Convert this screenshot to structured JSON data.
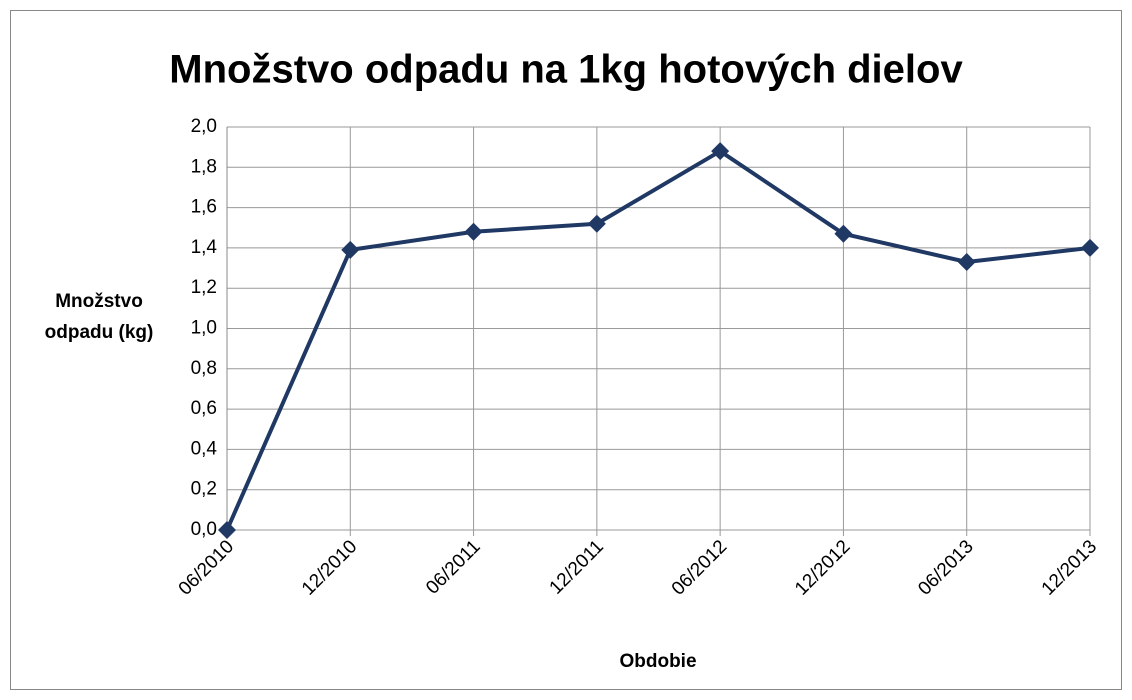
{
  "chart_data": {
    "type": "line",
    "title": "Množstvo odpadu na 1kg hotových dielov",
    "xlabel": "Obdobie",
    "ylabel": "Množstvo odpadu (kg)",
    "categories": [
      "06/2010",
      "12/2010",
      "06/2011",
      "12/2011",
      "06/2012",
      "12/2012",
      "06/2013",
      "12/2013"
    ],
    "series": [
      {
        "name": "Množstvo odpadu",
        "color": "#1f3864",
        "values": [
          0,
          1.39,
          1.48,
          1.52,
          1.88,
          1.47,
          1.33,
          1.4
        ]
      }
    ],
    "ylim": [
      0,
      2
    ],
    "yticks": [
      {
        "value": 0,
        "label": "0,0"
      },
      {
        "value": 0.2,
        "label": "0,2"
      },
      {
        "value": 0.4,
        "label": "0,4"
      },
      {
        "value": 0.6,
        "label": "0,6"
      },
      {
        "value": 0.8,
        "label": "0,8"
      },
      {
        "value": 1,
        "label": "1,0"
      },
      {
        "value": 1.2,
        "label": "1,2"
      },
      {
        "value": 1.4,
        "label": "1,4"
      },
      {
        "value": 1.6,
        "label": "1,6"
      },
      {
        "value": 1.8,
        "label": "1,8"
      },
      {
        "value": 2,
        "label": "2,0"
      }
    ],
    "grid": true
  }
}
